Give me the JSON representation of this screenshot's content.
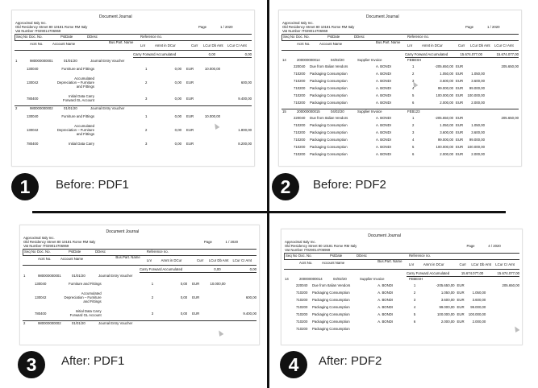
{
  "captions": [
    "Before: PDF1",
    "Before: PDF2",
    "After: PDF1",
    "After: PDF2"
  ],
  "badges": [
    "1",
    "2",
    "3",
    "4"
  ],
  "doc": {
    "title": "Document Journal",
    "company": "Approximal Italy Inc.",
    "address": "Old Residency Street 80 10181 Rome  RM Italy",
    "vat": "Vat Number    IT029014706969",
    "page_label": "Page"
  },
  "cols": {
    "seq": "Seq No",
    "doc": "Doc. No.",
    "pst": "PstDate",
    "ddesc": "DDesc",
    "ref": "Reference no.",
    "acnt": "Acnt No.",
    "acname": "Account Name",
    "bus": "Bus.Part. Name",
    "lnr": "Lnr",
    "amnt": "Amnt in DCur",
    "curr": "Curr",
    "dbt": "LCur Db Amt",
    "cr": "LCur Cr Amt"
  },
  "pdf1": {
    "page": "1 / 2020",
    "carry": {
      "label": "Carry Forward Accumulated",
      "db": "0,00",
      "cr": "0,00"
    },
    "entry1": {
      "seq": "1",
      "doc": "980000000001",
      "date": "01/01/20",
      "desc": "Journal Entry Voucher"
    },
    "entry2": {
      "seq": "2",
      "doc": "980000000002",
      "date": "01/01/20",
      "desc": "Journal Entry Voucher"
    },
    "lines1": [
      {
        "acnt": "130040",
        "name": "Furniture and Fittings",
        "lnr": "1",
        "amt": "0,00",
        "curr": "EUR",
        "db": "10.000,00",
        "cr": ""
      },
      {
        "acnt": "130042",
        "name": "Accumulated|Depreciation – Furniture|and Fittings",
        "lnr": "2",
        "amt": "0,00",
        "curr": "EUR",
        "db": "",
        "cr": "600,00"
      },
      {
        "acnt": "780400",
        "name": "Initial Data Carry|Forward GL Account",
        "lnr": "3",
        "amt": "0,00",
        "curr": "EUR",
        "db": "",
        "cr": "9.400,00"
      }
    ],
    "lines2": [
      {
        "acnt": "130040",
        "name": "Furniture and Fittings",
        "lnr": "1",
        "amt": "0,00",
        "curr": "EUR",
        "db": "10.000,00",
        "cr": ""
      },
      {
        "acnt": "130042",
        "name": "Accumulated|Depreciation – Furniture|and Fittings",
        "lnr": "2",
        "amt": "0,00",
        "curr": "EUR",
        "db": "",
        "cr": "1.800,00"
      },
      {
        "acnt": "780400",
        "name": "Initial Data Carry",
        "lnr": "3",
        "amt": "0,00",
        "curr": "EUR",
        "db": "",
        "cr": "8.200,00"
      }
    ]
  },
  "pdf2": {
    "page_before": "1 / 2020",
    "page_after": "4 / 2020",
    "carry": {
      "label": "Carry Forward Accumulated",
      "db": "15.674.077,00",
      "cr": "15.674.077,00"
    },
    "entry14": {
      "seq": "14",
      "doc": "200000000014",
      "date": "04/02/20",
      "desc": "Supplier Invoice",
      "ref": "FEBESH"
    },
    "entry15": {
      "seq": "15",
      "doc": "200000000015",
      "date": "04/02/20",
      "desc": "Supplier Invoice",
      "ref": "FEB123"
    },
    "lines14": [
      {
        "acnt": "220040",
        "name": "Due from Italian Vendors",
        "bus": "A. BONDI",
        "lnr": "1",
        "amt": "-205.650,00",
        "curr": "EUR",
        "db": "",
        "cr": "205.650,00"
      },
      {
        "acnt": "710200",
        "name": "Packaging Consumption",
        "bus": "A. BONDI",
        "lnr": "2",
        "amt": "1.050,00",
        "curr": "EUR",
        "db": "1.050,00",
        "cr": ""
      },
      {
        "acnt": "710200",
        "name": "Packaging Consumption",
        "bus": "A. BONDI",
        "lnr": "3",
        "amt": "3.600,00",
        "curr": "EUR",
        "db": "3.600,00",
        "cr": ""
      },
      {
        "acnt": "710200",
        "name": "Packaging Consumption",
        "bus": "A. BONDI",
        "lnr": "4",
        "amt": "99.000,00",
        "curr": "EUR",
        "db": "99.000,00",
        "cr": ""
      },
      {
        "acnt": "710200",
        "name": "Packaging Consumption",
        "bus": "A. BONDI",
        "lnr": "5",
        "amt": "100.000,00",
        "curr": "EUR",
        "db": "100.000,00",
        "cr": ""
      },
      {
        "acnt": "710200",
        "name": "Packaging Consumption",
        "bus": "A. BONDI",
        "lnr": "6",
        "amt": "2.000,00",
        "curr": "EUR",
        "db": "2.000,00",
        "cr": ""
      }
    ],
    "lines15": [
      {
        "acnt": "220040",
        "name": "Due from Italian Vendors",
        "bus": "A. BONDI",
        "lnr": "1",
        "amt": "-205.650,00",
        "curr": "EUR",
        "db": "",
        "cr": "205.650,00"
      },
      {
        "acnt": "710200",
        "name": "Packaging Consumption",
        "bus": "A. BONDI",
        "lnr": "2",
        "amt": "1.050,00",
        "curr": "EUR",
        "db": "1.050,00",
        "cr": ""
      },
      {
        "acnt": "710200",
        "name": "Packaging Consumption",
        "bus": "A. BONDI",
        "lnr": "3",
        "amt": "3.600,00",
        "curr": "EUR",
        "db": "3.600,00",
        "cr": ""
      },
      {
        "acnt": "710200",
        "name": "Packaging Consumption",
        "bus": "A. BONDI",
        "lnr": "4",
        "amt": "99.000,00",
        "curr": "EUR",
        "db": "99.000,00",
        "cr": ""
      },
      {
        "acnt": "710200",
        "name": "Packaging Consumption",
        "bus": "A. BONDI",
        "lnr": "5",
        "amt": "100.000,00",
        "curr": "EUR",
        "db": "100.000,00",
        "cr": ""
      },
      {
        "acnt": "710200",
        "name": "Packaging Consumption",
        "bus": "A. BONDI",
        "lnr": "6",
        "amt": "2.000,00",
        "curr": "EUR",
        "db": "2.000,00",
        "cr": ""
      }
    ],
    "truncated_row": {
      "acnt": "710200",
      "name": "Packaging Consumption",
      "bus": "A. BONDI",
      "lnr": "6",
      "amt": "2.000,00",
      "curr": "EUR",
      "db": "2.000,00"
    }
  }
}
